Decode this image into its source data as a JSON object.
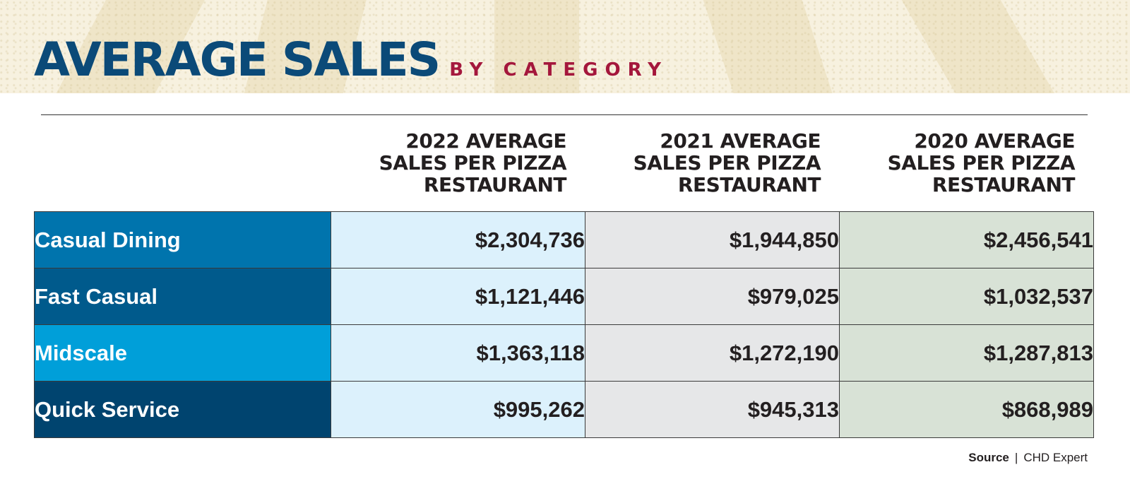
{
  "header": {
    "title": "AVERAGE SALES",
    "subtitle": "BY CATEGORY"
  },
  "chart_data": {
    "type": "table",
    "columns": [
      [
        "2022 AVERAGE",
        "SALES PER PIZZA",
        "RESTAURANT"
      ],
      [
        "2021 AVERAGE",
        "SALES PER PIZZA",
        "RESTAURANT"
      ],
      [
        "2020 AVERAGE",
        "SALES PER PIZZA",
        "RESTAURANT"
      ]
    ],
    "rows": [
      {
        "category": "Casual Dining",
        "color": "#0074ad",
        "values": [
          "$2,304,736",
          "$1,944,850",
          "$2,456,541"
        ]
      },
      {
        "category": "Fast Casual",
        "color": "#005a8c",
        "values": [
          "$1,121,446",
          "$979,025",
          "$1,032,537"
        ]
      },
      {
        "category": "Midscale",
        "color": "#009fd9",
        "values": [
          "$1,363,118",
          "$1,272,190",
          "$1,287,813"
        ]
      },
      {
        "category": "Quick Service",
        "color": "#00446f",
        "values": [
          "$995,262",
          "$945,313",
          "$868,989"
        ]
      }
    ]
  },
  "source": {
    "label": "Source",
    "separator": "|",
    "value": "CHD Expert"
  }
}
